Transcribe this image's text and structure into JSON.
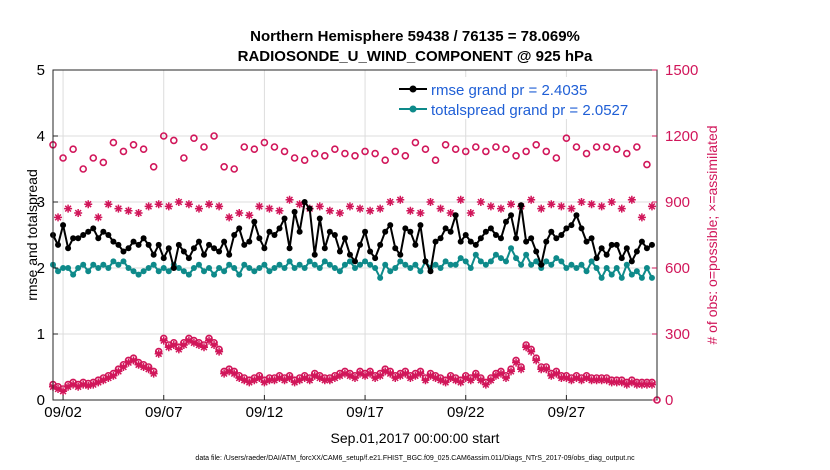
{
  "chart_data": {
    "type": "line",
    "title_line1": "Northern Hemisphere 59438 / 76135 = 78.069%",
    "title_line2": "RADIOSONDE_U_WIND_COMPONENT @ 925 hPa",
    "xlabel": "Sep.01,2017 00:00:00 start",
    "ylabel_left": "rmse and totalspread",
    "ylabel_right": "# of obs: o=possible; ×=assimilated",
    "left_ylim": [
      0,
      5
    ],
    "right_ylim": [
      0,
      1500
    ],
    "xlim": [
      1.5,
      31.5
    ],
    "left_ticks": [
      "0",
      "1",
      "2",
      "3",
      "4",
      "5"
    ],
    "right_ticks": [
      "0",
      "300",
      "600",
      "900",
      "1200",
      "1500"
    ],
    "x_ticks": [
      {
        "value": 2,
        "label": "09/02"
      },
      {
        "value": 7,
        "label": "09/07"
      },
      {
        "value": 12,
        "label": "09/12"
      },
      {
        "value": 17,
        "label": "09/17"
      },
      {
        "value": 22,
        "label": "09/22"
      },
      {
        "value": 27,
        "label": "09/27"
      }
    ],
    "colors": {
      "rmse": "#000000",
      "spread": "#0e8a8a",
      "obs": "#d1165a",
      "axis": "#262626"
    },
    "legend": [
      {
        "label": "rmse grand pr = 2.4035",
        "series": "rmse"
      },
      {
        "label": "totalspread grand pr = 2.0527",
        "series": "spread"
      }
    ],
    "x": [
      1.5,
      1.75,
      2.0,
      2.25,
      2.5,
      2.75,
      3.0,
      3.25,
      3.5,
      3.75,
      4.0,
      4.25,
      4.5,
      4.75,
      5.0,
      5.25,
      5.5,
      5.75,
      6.0,
      6.25,
      6.5,
      6.75,
      7.0,
      7.25,
      7.5,
      7.75,
      8.0,
      8.25,
      8.5,
      8.75,
      9.0,
      9.25,
      9.5,
      9.75,
      10.0,
      10.25,
      10.5,
      10.75,
      11.0,
      11.25,
      11.5,
      11.75,
      12.0,
      12.25,
      12.5,
      12.75,
      13.0,
      13.25,
      13.5,
      13.75,
      14.0,
      14.25,
      14.5,
      14.75,
      15.0,
      15.25,
      15.5,
      15.75,
      16.0,
      16.25,
      16.5,
      16.75,
      17.0,
      17.25,
      17.5,
      17.75,
      18.0,
      18.25,
      18.5,
      18.75,
      19.0,
      19.25,
      19.5,
      19.75,
      20.0,
      20.25,
      20.5,
      20.75,
      21.0,
      21.25,
      21.5,
      21.75,
      22.0,
      22.25,
      22.5,
      22.75,
      23.0,
      23.25,
      23.5,
      23.75,
      24.0,
      24.25,
      24.5,
      24.75,
      25.0,
      25.25,
      25.5,
      25.75,
      26.0,
      26.25,
      26.5,
      26.75,
      27.0,
      27.25,
      27.5,
      27.75,
      28.0,
      28.25,
      28.5,
      28.75,
      29.0,
      29.25,
      29.5,
      29.75,
      30.0,
      30.25,
      30.5,
      30.75,
      31.0,
      31.25
    ],
    "rmse": [
      2.5,
      2.35,
      2.65,
      2.3,
      2.45,
      2.45,
      2.5,
      2.55,
      2.6,
      2.45,
      2.55,
      2.5,
      2.4,
      2.35,
      2.25,
      2.3,
      2.4,
      2.35,
      2.45,
      2.35,
      2.2,
      2.35,
      2.15,
      2.3,
      2.0,
      2.35,
      2.25,
      2.15,
      2.3,
      2.4,
      2.2,
      2.35,
      2.3,
      2.25,
      2.4,
      2.2,
      2.5,
      2.6,
      2.35,
      2.4,
      2.7,
      2.45,
      2.3,
      2.55,
      2.5,
      2.6,
      2.75,
      2.3,
      2.85,
      2.55,
      3.0,
      2.9,
      2.2,
      2.75,
      2.3,
      2.55,
      2.5,
      2.25,
      2.45,
      2.2,
      2.1,
      2.35,
      2.55,
      2.25,
      2.15,
      2.35,
      2.55,
      2.65,
      2.3,
      2.2,
      2.6,
      2.55,
      2.35,
      2.65,
      2.1,
      1.95,
      2.4,
      2.45,
      2.6,
      2.55,
      2.8,
      2.4,
      2.5,
      2.4,
      2.35,
      2.45,
      2.55,
      2.6,
      2.5,
      2.45,
      2.7,
      2.8,
      2.45,
      2.95,
      2.4,
      2.45,
      2.25,
      2.05,
      2.4,
      2.55,
      2.45,
      2.5,
      2.6,
      2.65,
      2.8,
      2.6,
      2.4,
      2.45,
      2.15,
      2.3,
      2.2,
      2.35,
      2.35,
      2.15,
      2.3,
      2.1,
      2.25,
      2.4,
      2.3,
      2.35
    ],
    "spread": [
      2.05,
      1.95,
      2.0,
      2.0,
      1.9,
      2.0,
      2.05,
      1.95,
      2.05,
      2.0,
      2.05,
      2.0,
      2.1,
      2.05,
      2.1,
      2.0,
      1.95,
      1.9,
      1.95,
      2.0,
      2.05,
      1.95,
      2.0,
      1.95,
      2.05,
      2.0,
      1.95,
      1.9,
      2.0,
      2.05,
      1.95,
      2.0,
      1.9,
      2.0,
      1.95,
      2.05,
      2.0,
      1.9,
      2.05,
      2.0,
      1.95,
      2.0,
      2.05,
      1.95,
      2.0,
      2.05,
      2.0,
      2.1,
      2.0,
      2.05,
      2.0,
      2.1,
      2.05,
      2.0,
      2.1,
      2.05,
      2.0,
      1.95,
      2.05,
      2.1,
      2.0,
      2.05,
      2.1,
      2.05,
      2.0,
      1.85,
      2.05,
      1.95,
      2.0,
      2.1,
      2.05,
      2.0,
      2.05,
      1.95,
      2.1,
      2.0,
      2.05,
      2.0,
      2.1,
      2.05,
      2.05,
      2.15,
      2.1,
      2.0,
      2.2,
      2.1,
      2.05,
      2.1,
      2.2,
      2.15,
      2.1,
      2.3,
      2.15,
      2.05,
      2.2,
      2.05,
      2.1,
      2.0,
      2.1,
      2.05,
      2.15,
      2.1,
      2.0,
      2.05,
      2.0,
      2.05,
      1.95,
      2.1,
      2.0,
      1.85,
      2.0,
      1.9,
      2.0,
      1.85,
      2.05,
      1.9,
      1.95,
      1.85,
      2.0,
      1.85
    ],
    "obs_possible": [
      1160,
      1060,
      1100,
      1020,
      1140,
      1120,
      1050,
      1080,
      1100,
      1150,
      1080,
      1120,
      1170,
      1050,
      1130,
      1100,
      1160,
      1080,
      1140,
      1120,
      1060,
      1150,
      1200,
      1110,
      1180,
      1150,
      1100,
      1140,
      1190,
      1130,
      1150,
      1080,
      1200,
      1130,
      1060,
      1100,
      1050,
      1110,
      1150,
      1090,
      1140,
      1100,
      1170,
      1120,
      1150,
      1140,
      1130,
      1120,
      1100,
      1150,
      1090,
      1140,
      1120,
      1150,
      1110,
      1130,
      1140,
      1100,
      1120,
      1140,
      1110,
      1150,
      1130,
      1100,
      1120,
      1140,
      1090,
      1190,
      1130,
      1190,
      1110,
      1130,
      1170,
      1100,
      1140,
      1150,
      1090,
      1130,
      1160,
      1110,
      1140,
      1170,
      1130,
      1100,
      1150,
      1170,
      1130,
      1090,
      1150,
      1120,
      1140,
      1130,
      1110,
      1150,
      1130,
      1170,
      1160,
      1180,
      1130,
      1160,
      1100,
      1140,
      1190,
      1130,
      1150,
      1170,
      1120,
      1160,
      1150,
      1130,
      1150,
      1110,
      1140,
      1160,
      1120,
      1180,
      1150,
      1190,
      1070,
      1130
    ],
    "obs_assimilated": [
      860,
      830,
      820,
      870,
      800,
      850,
      880,
      890,
      850,
      830,
      870,
      890,
      910,
      870,
      820,
      860,
      890,
      850,
      900,
      880,
      830,
      890,
      950,
      880,
      920,
      900,
      870,
      890,
      900,
      870,
      920,
      890,
      940,
      880,
      850,
      830,
      810,
      850,
      870,
      840,
      860,
      880,
      880,
      870,
      900,
      860,
      880,
      910,
      860,
      890,
      880,
      870,
      840,
      880,
      870,
      860,
      880,
      850,
      860,
      880,
      860,
      870,
      880,
      860,
      850,
      870,
      880,
      900,
      880,
      910,
      870,
      860,
      890,
      850,
      880,
      900,
      860,
      870,
      900,
      850,
      880,
      910,
      870,
      850,
      880,
      900,
      860,
      880,
      880,
      870,
      850,
      890,
      870,
      880,
      900,
      910,
      890,
      870,
      840,
      890,
      900,
      880,
      920,
      870,
      880,
      900,
      870,
      890,
      920,
      880,
      860,
      900,
      890,
      870,
      850,
      910,
      880,
      830,
      910,
      880
    ],
    "obs_low_possible": [
      70,
      60,
      50,
      70,
      80,
      70,
      80,
      75,
      80,
      90,
      100,
      110,
      120,
      140,
      160,
      180,
      190,
      170,
      160,
      150,
      130,
      220,
      280,
      250,
      260,
      240,
      260,
      280,
      270,
      260,
      250,
      280,
      260,
      230,
      130,
      140,
      130,
      110,
      100,
      90,
      100,
      110,
      90,
      100,
      100,
      110,
      100,
      110,
      90,
      100,
      110,
      100,
      120,
      110,
      100,
      100,
      110,
      120,
      130,
      120,
      110,
      130,
      120,
      130,
      110,
      120,
      140,
      130,
      110,
      120,
      130,
      110,
      120,
      130,
      100,
      120,
      110,
      100,
      90,
      110,
      100,
      90,
      110,
      100,
      120,
      100,
      80,
      100,
      120,
      130,
      110,
      140,
      180,
      150,
      250,
      230,
      190,
      150,
      150,
      120,
      130,
      110,
      110,
      100,
      110,
      100,
      110,
      100,
      100,
      100,
      100,
      90,
      90,
      90,
      80,
      90,
      80,
      80,
      80,
      80
    ],
    "obs_low_assimilated": [
      60,
      50,
      40,
      60,
      70,
      60,
      70,
      65,
      70,
      80,
      90,
      100,
      110,
      130,
      150,
      170,
      180,
      160,
      150,
      140,
      120,
      210,
      270,
      240,
      250,
      230,
      250,
      270,
      260,
      250,
      240,
      270,
      250,
      220,
      120,
      130,
      120,
      100,
      90,
      80,
      90,
      100,
      80,
      90,
      90,
      100,
      90,
      100,
      80,
      90,
      100,
      90,
      110,
      100,
      90,
      90,
      100,
      110,
      120,
      110,
      100,
      120,
      110,
      120,
      100,
      110,
      130,
      120,
      100,
      110,
      120,
      100,
      110,
      120,
      90,
      110,
      100,
      90,
      80,
      100,
      90,
      80,
      100,
      90,
      110,
      90,
      70,
      90,
      110,
      120,
      100,
      130,
      170,
      140,
      240,
      220,
      180,
      140,
      140,
      110,
      120,
      100,
      100,
      90,
      100,
      90,
      100,
      90,
      90,
      90,
      90,
      80,
      80,
      80,
      70,
      80,
      70,
      70,
      70,
      70
    ],
    "footnote": "data file: /Users/raeder/DAI/ATM_forcXX/CAM6_setup/f.e21.FHIST_BGC.f09_025.CAM6assim.011/Diags_NTrS_2017-09/obs_diag_output.nc"
  }
}
